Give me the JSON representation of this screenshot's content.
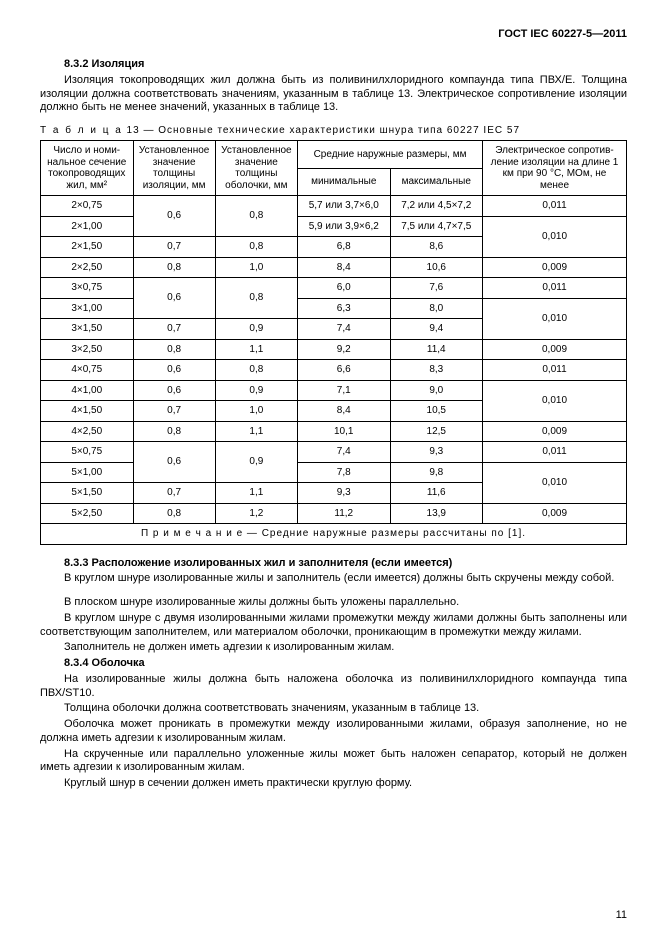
{
  "doc_header": "ГОСТ IEC 60227-5—2011",
  "s832": {
    "num_title": "8.3.2  Изоляция",
    "p1": "Изоляция токопроводящих жил должна быть из поливинилхлоридного компаунда типа ПВХ/Е. Толщина изоляции должна соответствовать значениям, указанным в таблице 13. Электрическое сопротивление изоляции должно быть не менее значений, указанных в таблице 13."
  },
  "table_caption_word": "Т а б л и ц а",
  "table_caption_rest": "  13 — Основные технические характеристики шнура типа 60227 IEC 57",
  "thead": {
    "c1": "Число и номи-\nнальное сечение\nтокопроводящих\nжил, мм²",
    "c2": "Установленное\nзначение\nтолщины\nизоляции, мм",
    "c3": "Установленное\nзначение\nтолщины\nоболочки, мм",
    "c4_group": "Средние наружные размеры, мм",
    "c4a": "минимальные",
    "c4b": "максимальные",
    "c5": "Электрическое сопротив-\nление изоляции на длине\n1 км при 90 °С, МОм, не\nменее"
  },
  "groups": [
    {
      "rows": [
        {
          "spec": "2×0,75",
          "ins": "0,6",
          "sh": "0,8",
          "min": "5,7 или 3,7×6,0",
          "max": "7,2 или 4,5×7,2",
          "res": "0,011",
          "ins_rowspan": 2,
          "sh_rowspan": 2
        },
        {
          "spec": "2×1,00",
          "ins": null,
          "sh": null,
          "min": "5,9 или 3,9×6,2",
          "max": "7,5 или 4,7×7,5",
          "res": "0,010",
          "res_rowspan": 2
        },
        {
          "spec": "2×1,50",
          "ins": "0,7",
          "sh": "0,8",
          "min": "6,8",
          "max": "8,6",
          "res": null
        },
        {
          "spec": "2×2,50",
          "ins": "0,8",
          "sh": "1,0",
          "min": "8,4",
          "max": "10,6",
          "res": "0,009"
        }
      ]
    },
    {
      "rows": [
        {
          "spec": "3×0,75",
          "ins": "0,6",
          "sh": "0,8",
          "min": "6,0",
          "max": "7,6",
          "res": "0,011",
          "ins_rowspan": 2,
          "sh_rowspan": 2
        },
        {
          "spec": "3×1,00",
          "ins": null,
          "sh": null,
          "min": "6,3",
          "max": "8,0",
          "res": "0,010",
          "res_rowspan": 2
        },
        {
          "spec": "3×1,50",
          "ins": "0,7",
          "sh": "0,9",
          "min": "7,4",
          "max": "9,4",
          "res": null
        },
        {
          "spec": "3×2,50",
          "ins": "0,8",
          "sh": "1,1",
          "min": "9,2",
          "max": "11,4",
          "res": "0,009"
        }
      ]
    },
    {
      "rows": [
        {
          "spec": "4×0,75",
          "ins": "0,6",
          "sh": "0,8",
          "min": "6,6",
          "max": "8,3",
          "res": "0,011"
        },
        {
          "spec": "4×1,00",
          "ins": "0,6",
          "sh": "0,9",
          "min": "7,1",
          "max": "9,0",
          "res": "0,010",
          "res_rowspan": 2
        },
        {
          "spec": "4×1,50",
          "ins": "0,7",
          "sh": "1,0",
          "min": "8,4",
          "max": "10,5",
          "res": null
        },
        {
          "spec": "4×2,50",
          "ins": "0,8",
          "sh": "1,1",
          "min": "10,1",
          "max": "12,5",
          "res": "0,009"
        }
      ]
    },
    {
      "rows": [
        {
          "spec": "5×0,75",
          "ins": "0,6",
          "sh": "0,9",
          "min": "7,4",
          "max": "9,3",
          "res": "0,011",
          "ins_rowspan": 2,
          "sh_rowspan": 2
        },
        {
          "spec": "5×1,00",
          "ins": null,
          "sh": null,
          "min": "7,8",
          "max": "9,8",
          "res": "0,010",
          "res_rowspan": 2
        },
        {
          "spec": "5×1,50",
          "ins": "0,7",
          "sh": "1,1",
          "min": "9,3",
          "max": "11,6",
          "res": null
        },
        {
          "spec": "5×2,50",
          "ins": "0,8",
          "sh": "1,2",
          "min": "11,2",
          "max": "13,9",
          "res": "0,009"
        }
      ]
    }
  ],
  "table_note": "П р и м е ч а н и е  — Средние наружные размеры рассчитаны по [1].",
  "s833": {
    "num_title": "8.3.3  Расположение изолированных жил и заполнителя (если имеется)",
    "p1": "В круглом шнуре изолированные жилы и заполнитель (если имеется) должны быть скручены между собой.",
    "p2": "В плоском шнуре изолированные жилы должны быть уложены параллельно.",
    "p3": "В круглом шнуре с двумя изолированными жилами промежутки между жилами должны быть заполнены или соответствующим заполнителем, или материалом оболочки, проникающим в промежутки между жилами.",
    "p4": "Заполнитель не должен иметь адгезии к изолированным жилам."
  },
  "s834": {
    "num_title": "8.3.4  Оболочка",
    "p1": "На изолированные жилы должна быть наложена оболочка из поливинилхлоридного компаунда типа ПВХ/ST10.",
    "p2": "Толщина оболочки должна соответствовать значениям, указанным в таблице 13.",
    "p3": "Оболочка может проникать в промежутки между изолированными жилами, образуя заполнение, но не должна иметь адгезии к изолированным жилам.",
    "p4": "На скрученные или параллельно уложенные жилы может быть наложен сепаратор, который не должен иметь адгезии к изолированным жилам.",
    "p5": "Круглый шнур в сечении должен иметь практически круглую форму."
  },
  "page_number": "11"
}
